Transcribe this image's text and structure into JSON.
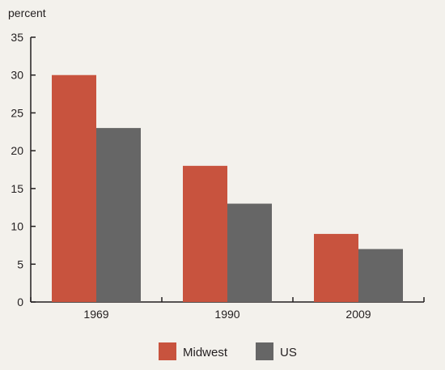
{
  "chart_data": {
    "type": "bar",
    "categories": [
      "1969",
      "1990",
      "2009"
    ],
    "series": [
      {
        "name": "Midwest",
        "values": [
          30,
          18,
          9
        ],
        "color": "#c8533e"
      },
      {
        "name": "US",
        "values": [
          23,
          13,
          7
        ],
        "color": "#666666"
      }
    ],
    "ylabel": "percent",
    "ylim": [
      0,
      35
    ],
    "yticks": [
      0,
      5,
      10,
      15,
      20,
      25,
      30,
      35
    ],
    "grid": false,
    "legend_position": "bottom-center"
  },
  "colors": {
    "background": "#f3f1ec",
    "axis": "#231f20"
  }
}
